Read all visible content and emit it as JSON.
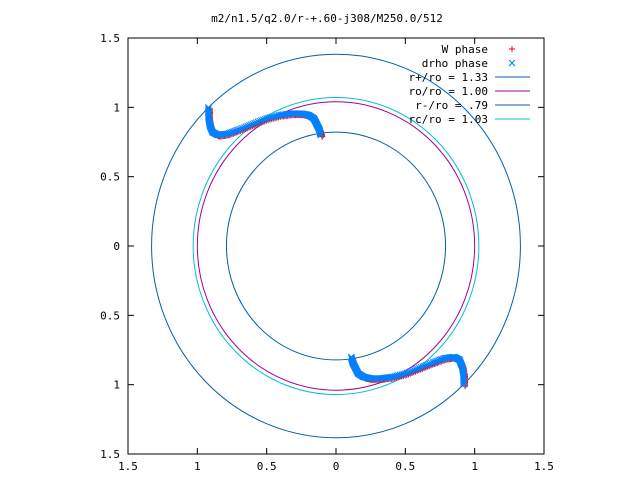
{
  "chart_data": {
    "type": "scatter",
    "title": "m2/n1.5/q2.0/r-+.60-j308/M250.0/512",
    "xlim": [
      -1.5,
      1.5
    ],
    "ylim": [
      -1.5,
      1.5
    ],
    "x_ticks": [
      {
        "value": -1.5,
        "label": "1.5"
      },
      {
        "value": -1.0,
        "label": "1"
      },
      {
        "value": -0.5,
        "label": "0.5"
      },
      {
        "value": 0.0,
        "label": "0"
      },
      {
        "value": 0.5,
        "label": "0.5"
      },
      {
        "value": 1.0,
        "label": "1"
      },
      {
        "value": 1.5,
        "label": "1.5"
      }
    ],
    "y_ticks": [
      {
        "value": 1.5,
        "label": "1.5"
      },
      {
        "value": 1.0,
        "label": "1"
      },
      {
        "value": 0.5,
        "label": "0.5"
      },
      {
        "value": 0.0,
        "label": "0"
      },
      {
        "value": -0.5,
        "label": "0.5"
      },
      {
        "value": -1.0,
        "label": "1"
      },
      {
        "value": -1.5,
        "label": "1.5"
      }
    ],
    "grid": false,
    "legend_position": "top-right",
    "series": [
      {
        "name": "W phase",
        "kind": "points",
        "marker": "+",
        "color": "#ff0000"
      },
      {
        "name": "drho phase",
        "kind": "points",
        "marker": "x",
        "color": "#0080ff"
      },
      {
        "name": "r+/ro = 1.33",
        "kind": "circle",
        "radius": 1.33,
        "color": "#0060ad"
      },
      {
        "name": "ro/ro = 1.00",
        "kind": "circle",
        "radius": 1.0,
        "color": "#a000a0"
      },
      {
        "name": "r-/ro = .79",
        "kind": "circle",
        "radius": 0.79,
        "color": "#0060ad"
      },
      {
        "name": "rc/ro = 1.03",
        "kind": "circle",
        "radius": 1.03,
        "color": "#00c0d0"
      }
    ],
    "phase_curve_upper": [
      [
        -0.92,
        1.0
      ],
      [
        -0.92,
        0.93
      ],
      [
        -0.91,
        0.87
      ],
      [
        -0.89,
        0.82
      ],
      [
        -0.85,
        0.8
      ],
      [
        -0.78,
        0.81
      ],
      [
        -0.7,
        0.84
      ],
      [
        -0.6,
        0.88
      ],
      [
        -0.5,
        0.92
      ],
      [
        -0.4,
        0.945
      ],
      [
        -0.32,
        0.955
      ],
      [
        -0.25,
        0.955
      ],
      [
        -0.2,
        0.945
      ],
      [
        -0.16,
        0.92
      ],
      [
        -0.14,
        0.88
      ],
      [
        -0.12,
        0.84
      ],
      [
        -0.11,
        0.8
      ]
    ],
    "phase_curve_lower": [
      [
        0.92,
        -1.0
      ],
      [
        0.92,
        -0.93
      ],
      [
        0.91,
        -0.87
      ],
      [
        0.89,
        -0.82
      ],
      [
        0.85,
        -0.8
      ],
      [
        0.78,
        -0.81
      ],
      [
        0.7,
        -0.84
      ],
      [
        0.6,
        -0.88
      ],
      [
        0.5,
        -0.92
      ],
      [
        0.4,
        -0.945
      ],
      [
        0.32,
        -0.955
      ],
      [
        0.25,
        -0.955
      ],
      [
        0.2,
        -0.945
      ],
      [
        0.16,
        -0.92
      ],
      [
        0.14,
        -0.88
      ],
      [
        0.12,
        -0.84
      ],
      [
        0.11,
        -0.8
      ]
    ]
  }
}
